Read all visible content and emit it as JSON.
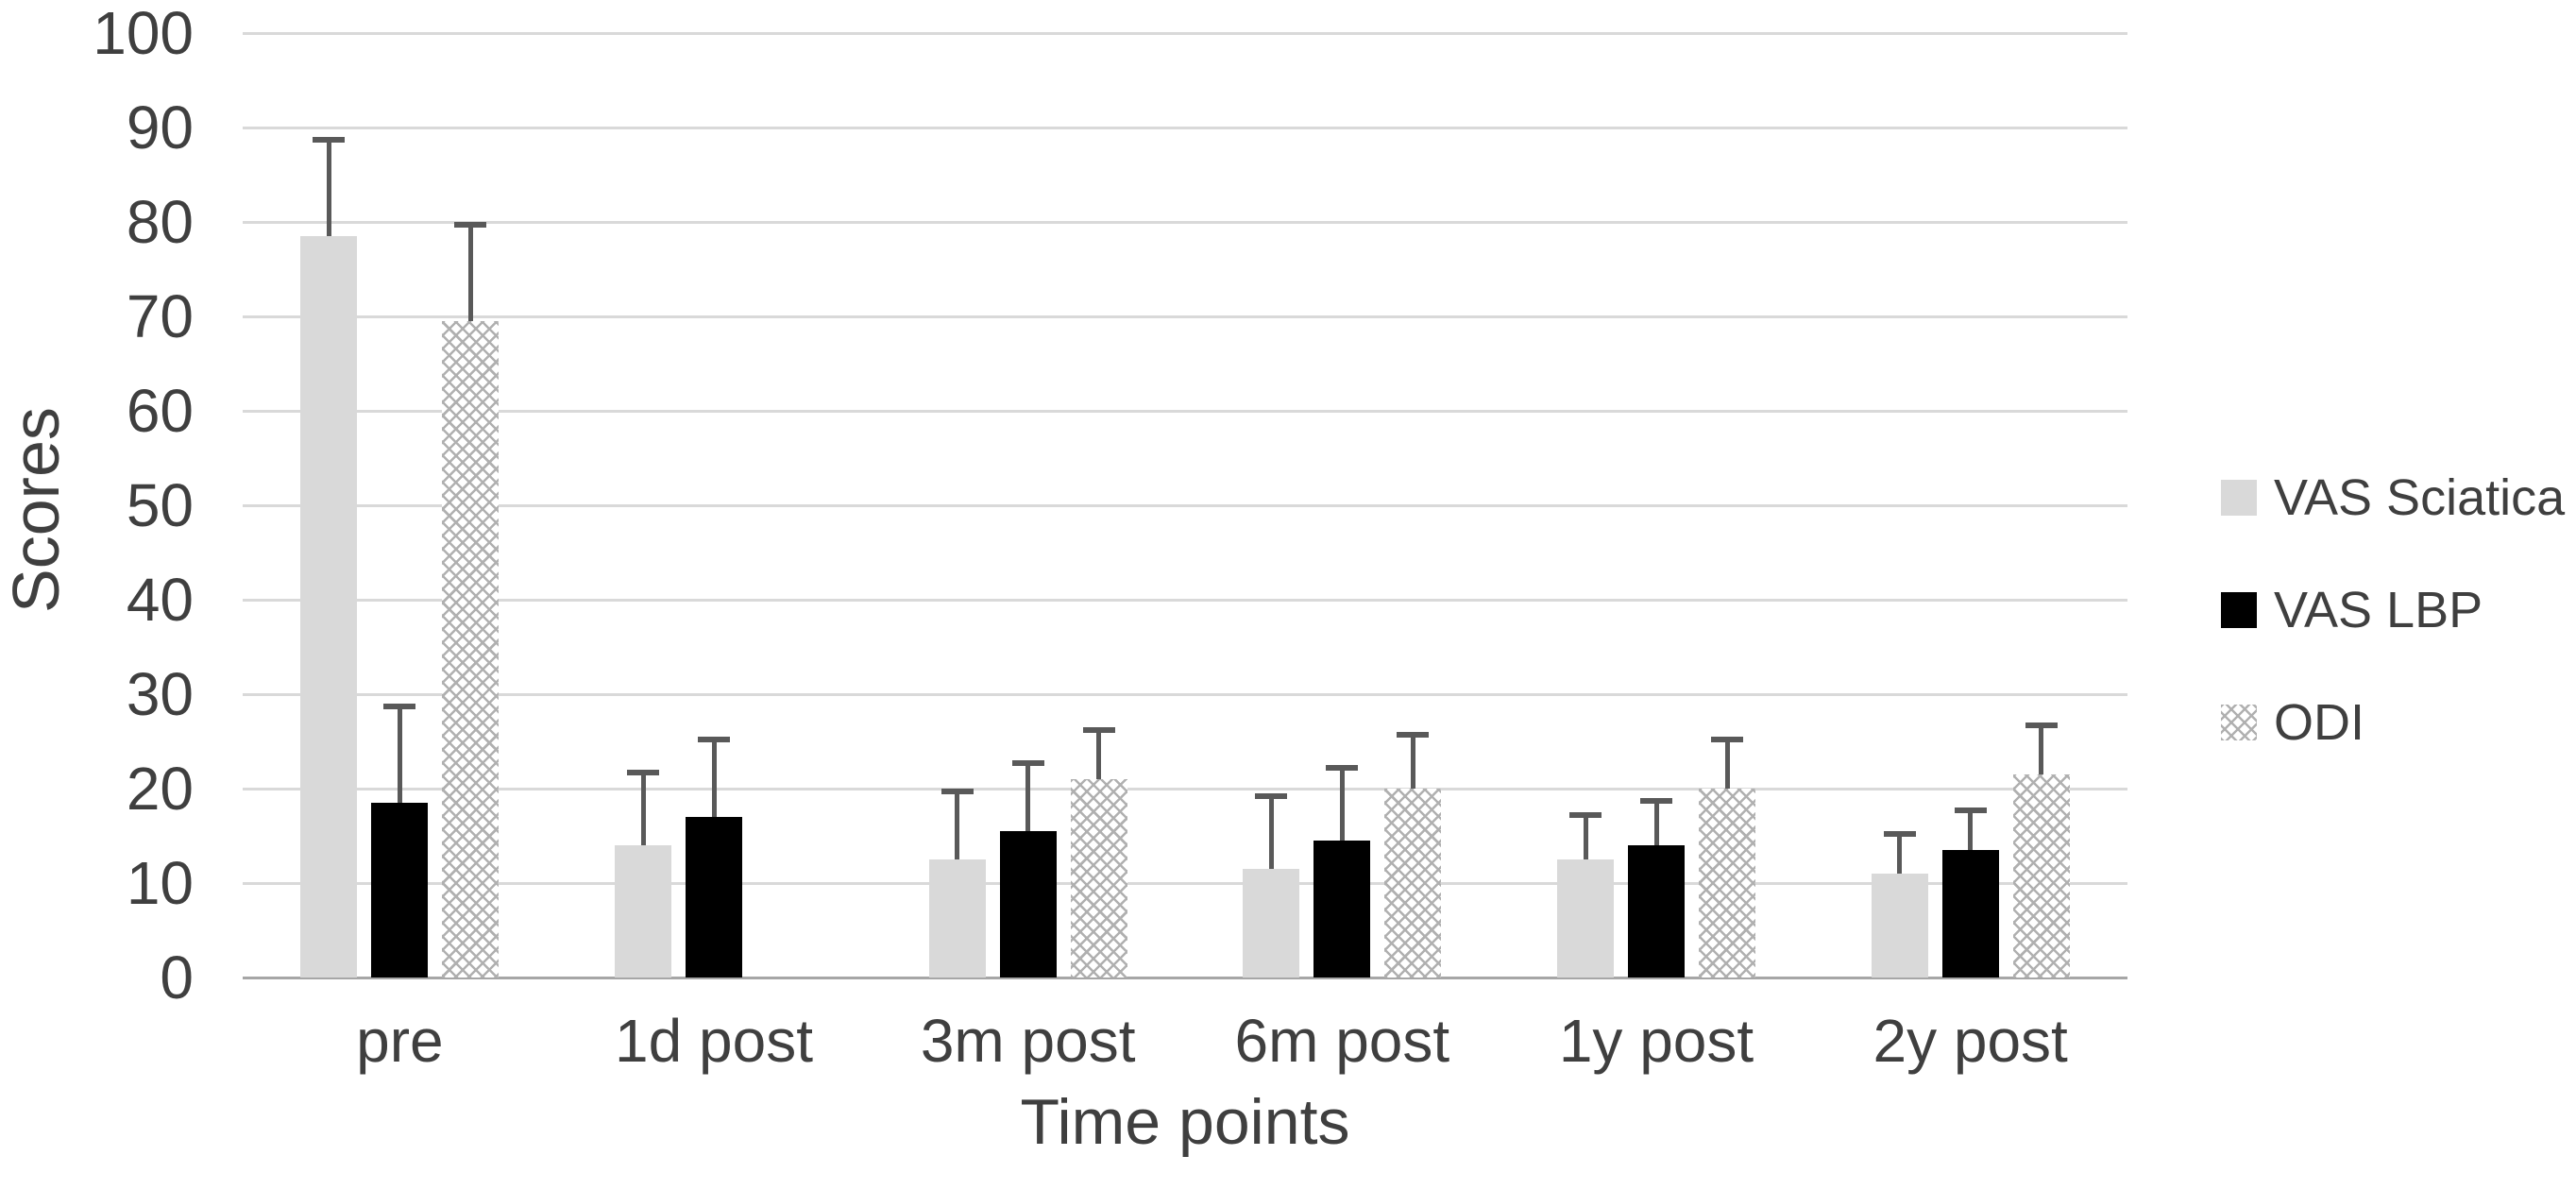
{
  "chart_data": {
    "type": "bar",
    "title": "",
    "xlabel": "Time points",
    "ylabel": "Scores",
    "ylim": [
      0,
      100
    ],
    "yticks": [
      0,
      10,
      20,
      30,
      40,
      50,
      60,
      70,
      80,
      90,
      100
    ],
    "grid": true,
    "legend_position": "right",
    "error_bars": "upper-only",
    "categories": [
      "pre",
      "1d post",
      "3m post",
      "6m post",
      "1y post",
      "2y post"
    ],
    "series": [
      {
        "name": "VAS Sciatica",
        "style": "solid-light-gray",
        "color": "#d9d9d9",
        "values": [
          78.5,
          14,
          12.5,
          11.5,
          12.5,
          11
        ],
        "errors_plus": [
          10.5,
          8,
          7.5,
          8,
          5,
          4.5
        ]
      },
      {
        "name": "VAS LBP",
        "style": "solid-black",
        "color": "#000000",
        "values": [
          18.5,
          17,
          15.5,
          14.5,
          14,
          13.5
        ],
        "errors_plus": [
          10.5,
          8.5,
          7.5,
          8,
          5,
          4.5
        ]
      },
      {
        "name": "ODI",
        "style": "crosshatch",
        "color": "#b0b0b0",
        "values": [
          69.5,
          null,
          21,
          20,
          20,
          21.5
        ],
        "errors_plus": [
          10.5,
          null,
          5.5,
          6,
          5.5,
          5.5
        ]
      }
    ]
  },
  "colors": {
    "background": "#ffffff",
    "gridline": "#d9d9d9",
    "axis_baseline": "#a6a6a6",
    "error_bar": "#595959",
    "text": "#3f3f3f"
  }
}
